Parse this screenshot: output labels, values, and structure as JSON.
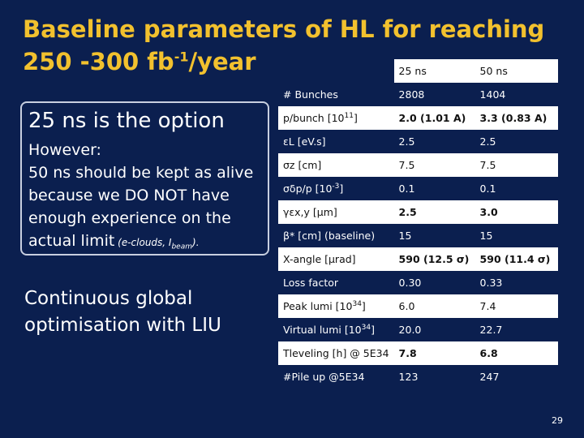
{
  "title": {
    "line1": "Baseline parameters of HL for reaching",
    "line2_pre": "250 -300 fb",
    "line2_sup": "-1",
    "line2_post": "/year"
  },
  "box": {
    "heading": "25 ns is the option",
    "line1": "However:",
    "line2": "50 ns should be kept as alive",
    "line3": "because we DO NOT have",
    "line4": "enough experience on the",
    "line5": "actual limit",
    "small_pre": " (e-clouds, I",
    "small_sub": "beam",
    "small_post": ")."
  },
  "continuous": {
    "line1": "Continuous global",
    "line2": "optimisation with LIU"
  },
  "table": {
    "headers": [
      "",
      "25 ns",
      "50 ns"
    ],
    "rows": [
      {
        "label": "# Bunches",
        "v25": "2808",
        "v50": "1404"
      },
      {
        "label": "p/bunch [10",
        "label_sup": "11",
        "label_post": "]",
        "v25": "2.0  (1.01 A)",
        "v50": "3.3 (0.83  A)"
      },
      {
        "label": "εL [eV.s]",
        "v25": "2.5",
        "v50": "2.5"
      },
      {
        "label": "σz [cm]",
        "v25": "7.5",
        "v50": "7.5"
      },
      {
        "label": "σδp/p [10",
        "label_sup": "-3",
        "label_post": "]",
        "v25": "0.1",
        "v50": "0.1"
      },
      {
        "label": "γεx,y  [μm]",
        "v25": "2.5",
        "v50": "3.0"
      },
      {
        "label": "β* [cm] (baseline)",
        "v25": "15",
        "v50": "15"
      },
      {
        "label": "X-angle  [μrad]",
        "v25": "590 (12.5 σ)",
        "v50": "590 (11.4 σ)"
      },
      {
        "label": "Loss factor",
        "v25": "0.30",
        "v50": "0.33"
      },
      {
        "label": "Peak lumi [10",
        "label_sup": "34",
        "label_post": "]",
        "v25": "6.0",
        "v50": "7.4"
      },
      {
        "label": "Virtual lumi [10",
        "label_sup": "34",
        "label_post": "]",
        "v25": "20.0",
        "v50": "22.7"
      },
      {
        "label": "Tleveling [h] @ 5E34",
        "v25": "7.8",
        "v50": "6.8"
      },
      {
        "label": "#Pile up @5E34",
        "v25": "123",
        "v50": "247"
      }
    ]
  },
  "page_number": "29",
  "colors": {
    "background": "#0b1f4f",
    "title": "#f2c12e",
    "table_light": "#ffffff"
  }
}
